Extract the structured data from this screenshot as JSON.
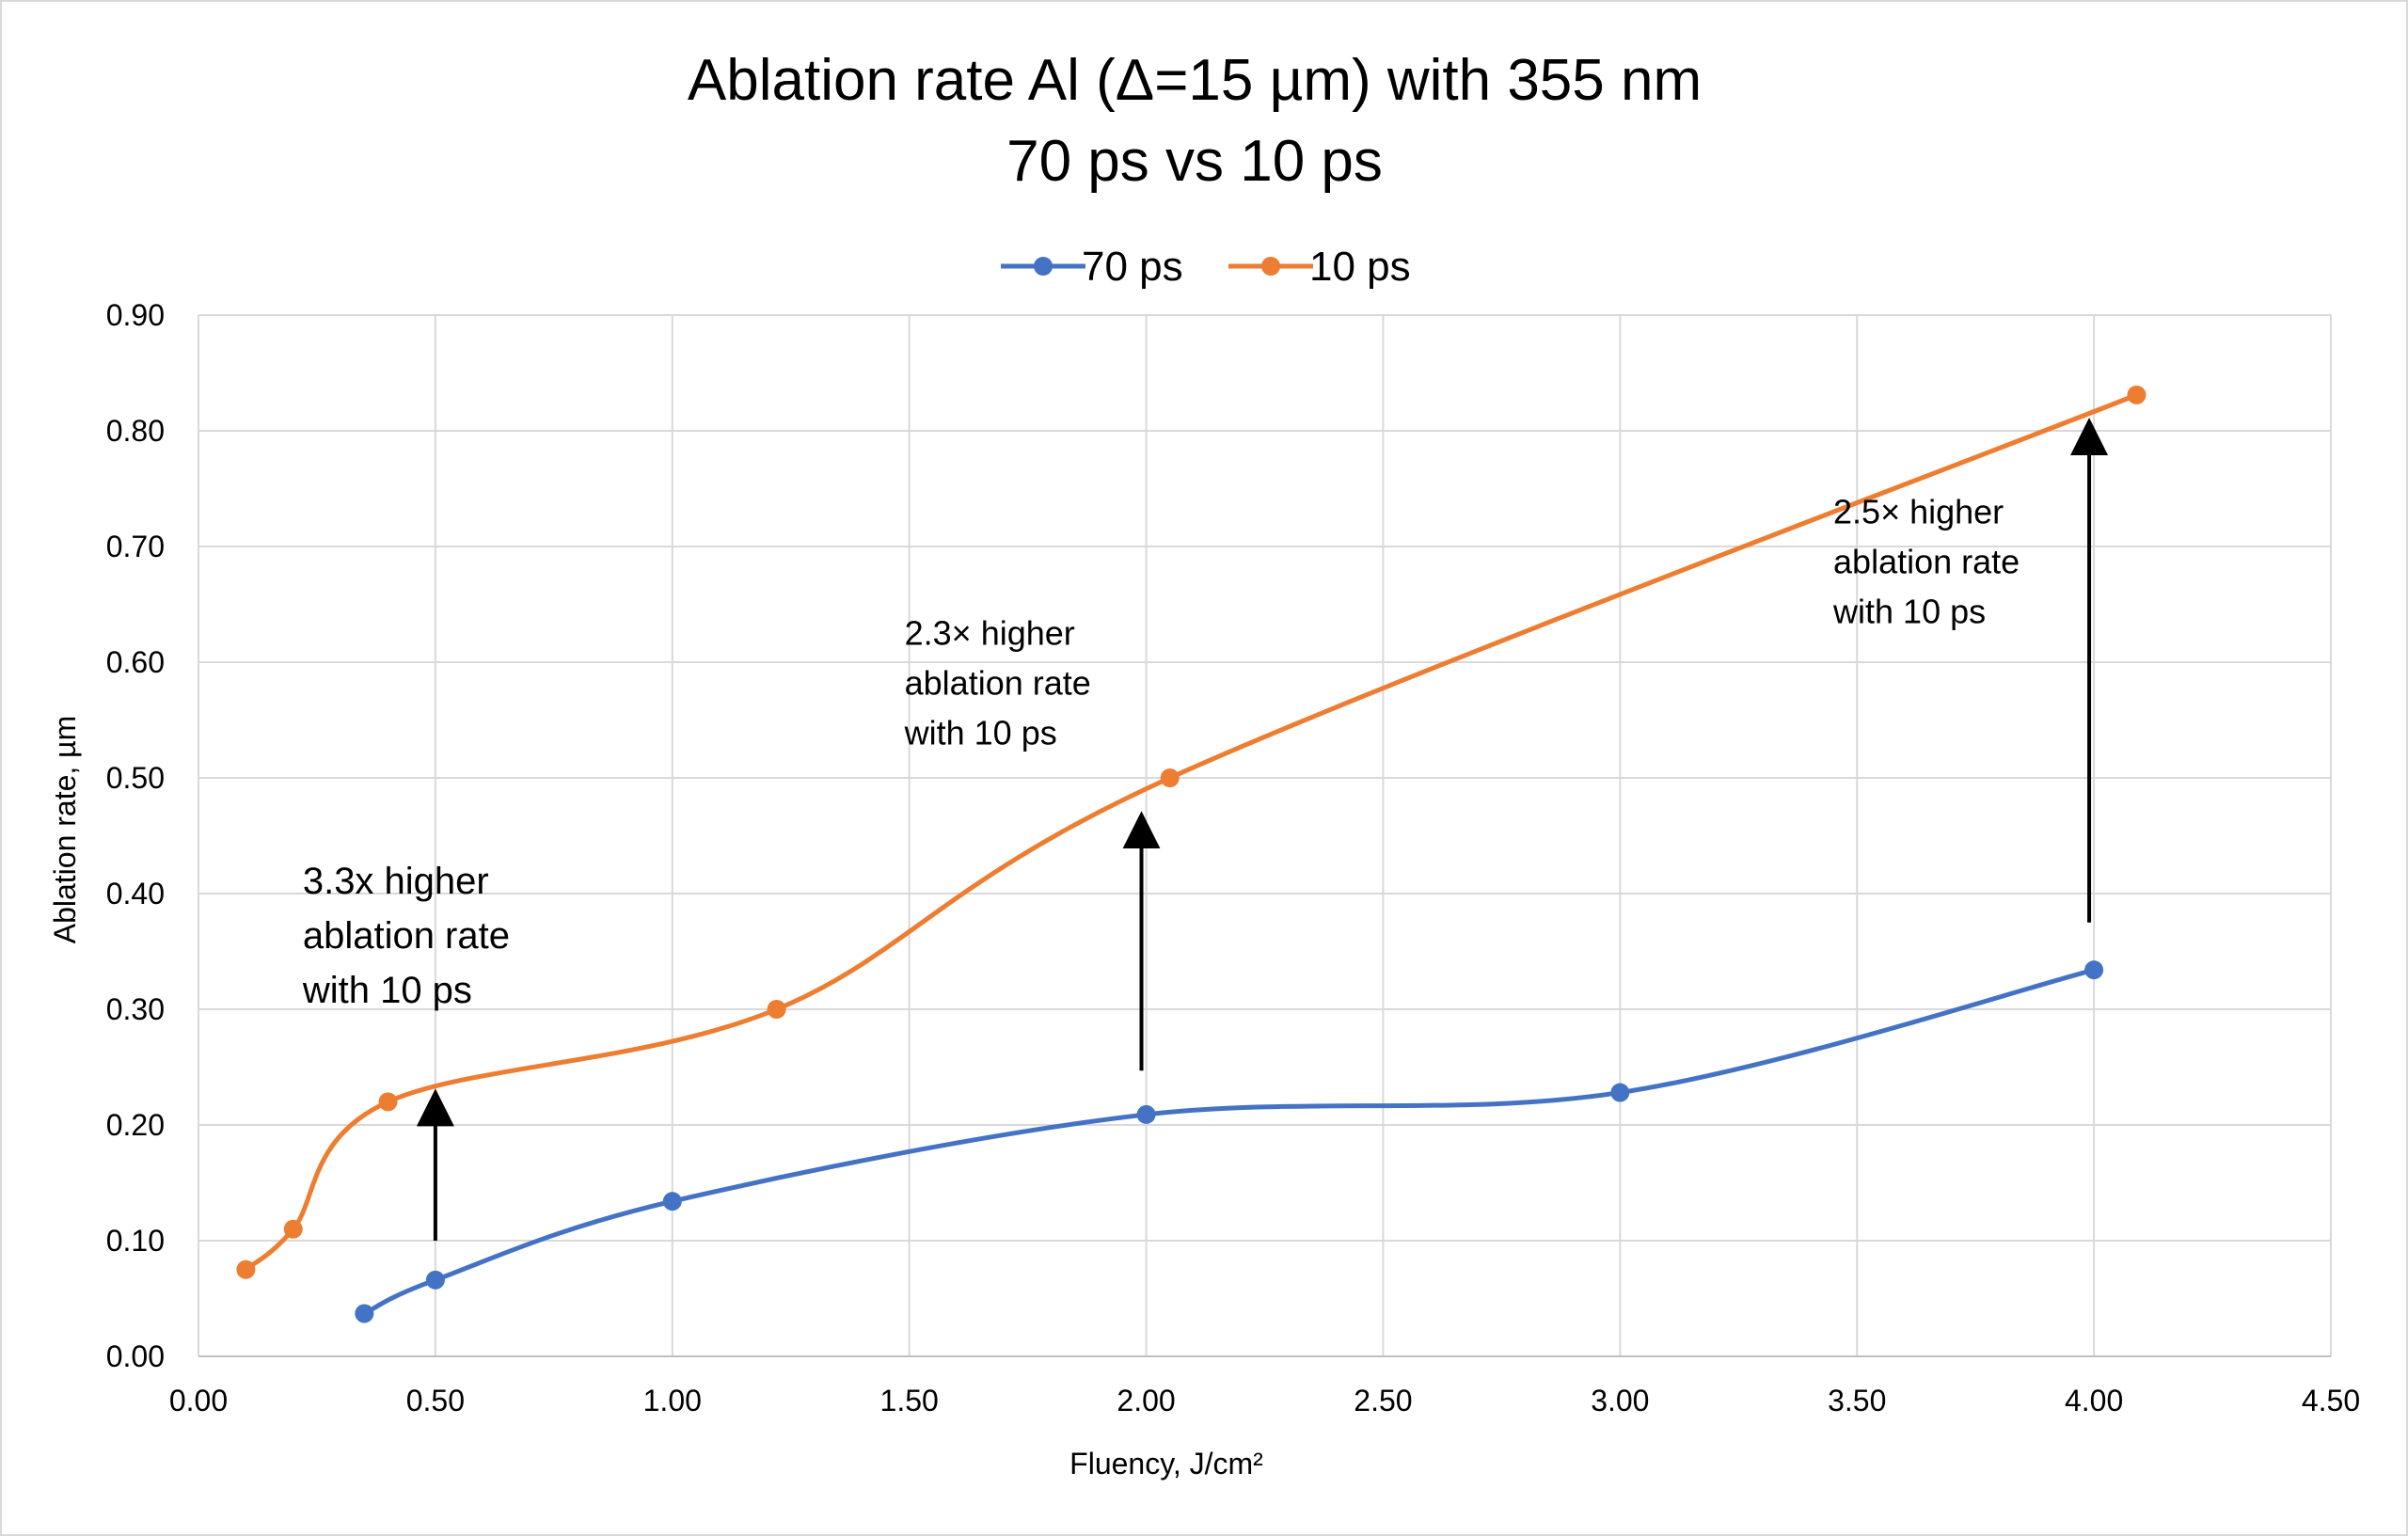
{
  "chart_data": {
    "type": "line",
    "title": "Ablation rate Al (Δ=15 µm) with 355 nm",
    "subtitle": "70 ps vs 10 ps",
    "xlabel": "Fluency, J/cm²",
    "ylabel": "Ablation rate, µm",
    "xlim": [
      0,
      4.5
    ],
    "ylim": [
      0,
      0.9
    ],
    "x_ticks": [
      "0.00",
      "0.50",
      "1.00",
      "1.50",
      "2.00",
      "2.50",
      "3.00",
      "3.50",
      "4.00",
      "4.50"
    ],
    "y_ticks": [
      "0.00",
      "0.10",
      "0.20",
      "0.30",
      "0.40",
      "0.50",
      "0.60",
      "0.70",
      "0.80",
      "0.90"
    ],
    "grid": true,
    "legend_position": "top-center",
    "smoothed": true,
    "series": [
      {
        "name": "70 ps",
        "color": "#4472c4",
        "points": [
          [
            0.35,
            0.037
          ],
          [
            0.5,
            0.066
          ],
          [
            1.0,
            0.134
          ],
          [
            2.0,
            0.209
          ],
          [
            3.0,
            0.228
          ],
          [
            4.0,
            0.334
          ]
        ]
      },
      {
        "name": "10 ps",
        "color": "#ed7d31",
        "points": [
          [
            0.1,
            0.075
          ],
          [
            0.2,
            0.11
          ],
          [
            0.4,
            0.22
          ],
          [
            1.22,
            0.3
          ],
          [
            2.05,
            0.5
          ],
          [
            4.09,
            0.831
          ]
        ]
      }
    ],
    "annotations": [
      {
        "lines": [
          "3.3x higher",
          "ablation rate",
          "with 10 ps"
        ],
        "x": 0.22,
        "y": 0.4,
        "size": "large",
        "arrow": {
          "x": 0.5,
          "y_from": 0.1,
          "y_to": 0.22
        }
      },
      {
        "lines": [
          "2.3× higher",
          "ablation rate",
          "with 10 ps"
        ],
        "x": 1.49,
        "y": 0.615,
        "size": "medium",
        "arrow": {
          "x": 1.99,
          "y_from": 0.247,
          "y_to": 0.46
        }
      },
      {
        "lines": [
          "2.5× higher",
          "ablation rate",
          "with 10 ps"
        ],
        "x": 3.45,
        "y": 0.72,
        "size": "medium",
        "arrow": {
          "x": 3.99,
          "y_from": 0.375,
          "y_to": 0.8
        }
      }
    ]
  }
}
